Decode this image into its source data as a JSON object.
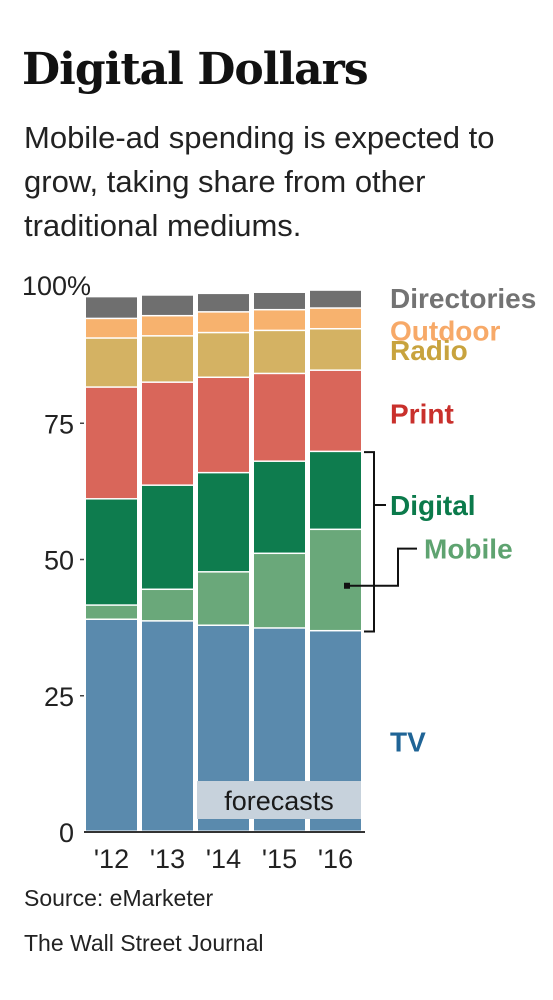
{
  "header": {
    "title": "Digital Dollars",
    "subtitle": "Mobile-ad spending is expected to grow, taking share from other traditional mediums."
  },
  "footer": {
    "source": "Source: eMarketer",
    "publisher": "The Wall Street Journal"
  },
  "chart_data": {
    "type": "bar",
    "stacked": true,
    "categories": [
      "'12",
      "'13",
      "'14",
      "'15",
      "'16"
    ],
    "ylim": [
      0,
      100
    ],
    "yticks": [
      0,
      25,
      50,
      75,
      100
    ],
    "ytick_labels": [
      "0",
      "25",
      "50",
      "75",
      "100%"
    ],
    "series": [
      {
        "name": "TV",
        "color": "#5a8aad",
        "values": [
          38.9,
          38.6,
          37.8,
          37.3,
          36.8
        ]
      },
      {
        "name": "Mobile",
        "color": "#6aa87a",
        "values": [
          2.6,
          5.8,
          9.8,
          13.7,
          18.6
        ]
      },
      {
        "name": "Digital",
        "color": "#0e7c4e",
        "values": [
          19.5,
          19.1,
          18.2,
          16.9,
          14.3
        ]
      },
      {
        "name": "Print",
        "color": "#d9665a",
        "values": [
          20.5,
          18.9,
          17.5,
          16.1,
          14.9
        ]
      },
      {
        "name": "Radio",
        "color": "#d4b263",
        "values": [
          9.0,
          8.5,
          8.2,
          7.9,
          7.6
        ]
      },
      {
        "name": "Outdoor",
        "color": "#f7b26e",
        "values": [
          3.6,
          3.7,
          3.8,
          3.8,
          3.8
        ]
      },
      {
        "name": "Directories",
        "color": "#6f6f6f",
        "values": [
          4.0,
          3.8,
          3.4,
          3.2,
          3.3
        ]
      }
    ],
    "legend_labels": [
      {
        "name": "Directories",
        "text": "Directories",
        "color": "#737373"
      },
      {
        "name": "Outdoor",
        "text": "Outdoor",
        "color": "#f7a968"
      },
      {
        "name": "Radio",
        "text": "Radio",
        "color": "#c8a33e"
      },
      {
        "name": "Print",
        "text": "Print",
        "color": "#c9302c"
      },
      {
        "name": "Digital",
        "text": "Digital",
        "color": "#0b7a4b"
      },
      {
        "name": "Mobile",
        "text": "Mobile",
        "color": "#5ea370"
      },
      {
        "name": "TV",
        "text": "TV",
        "color": "#1f6496"
      }
    ],
    "annotation": "forecasts",
    "forecast_categories": [
      "'14",
      "'15",
      "'16"
    ],
    "legend_placement": "right"
  }
}
